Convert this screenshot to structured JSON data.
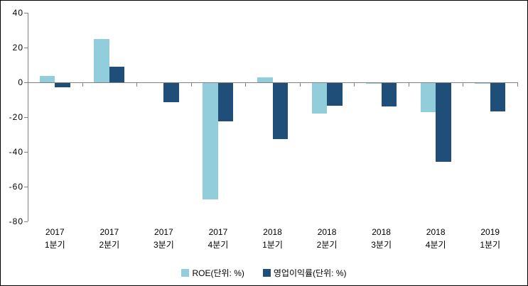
{
  "chart": {
    "background": "#FFFFFF",
    "frame_border_color": "#000000",
    "axis_color": "#808080",
    "text_color": "#000000"
  },
  "chart_data": {
    "type": "bar",
    "title": "",
    "xlabel": "",
    "ylabel": "",
    "grid": false,
    "legend_position": "bottom",
    "ylim": [
      -80,
      40
    ],
    "yticks": [
      40,
      20,
      0,
      -20,
      -40,
      -60,
      -80
    ],
    "categories": [
      {
        "year": "2017",
        "quarter": "1분기"
      },
      {
        "year": "2017",
        "quarter": "2분기"
      },
      {
        "year": "2017",
        "quarter": "3분기"
      },
      {
        "year": "2017",
        "quarter": "4분기"
      },
      {
        "year": "2018",
        "quarter": "1분기"
      },
      {
        "year": "2018",
        "quarter": "2분기"
      },
      {
        "year": "2018",
        "quarter": "3분기"
      },
      {
        "year": "2018",
        "quarter": "4분기"
      },
      {
        "year": "2019",
        "quarter": "1분기"
      }
    ],
    "series": [
      {
        "name": "ROE(단위: %)",
        "key": "roe",
        "color": "#92CDDC",
        "values": [
          3.8,
          25,
          0,
          -67.5,
          2.8,
          -18,
          -1,
          -17.2,
          -0.7
        ]
      },
      {
        "name": "영업이익률(단위: %)",
        "key": "operating-margin",
        "color": "#1F4E79",
        "values": [
          -3,
          9,
          -11.3,
          -22.4,
          -32.6,
          -13.5,
          -13.8,
          -45.6,
          -16.7
        ]
      }
    ]
  }
}
